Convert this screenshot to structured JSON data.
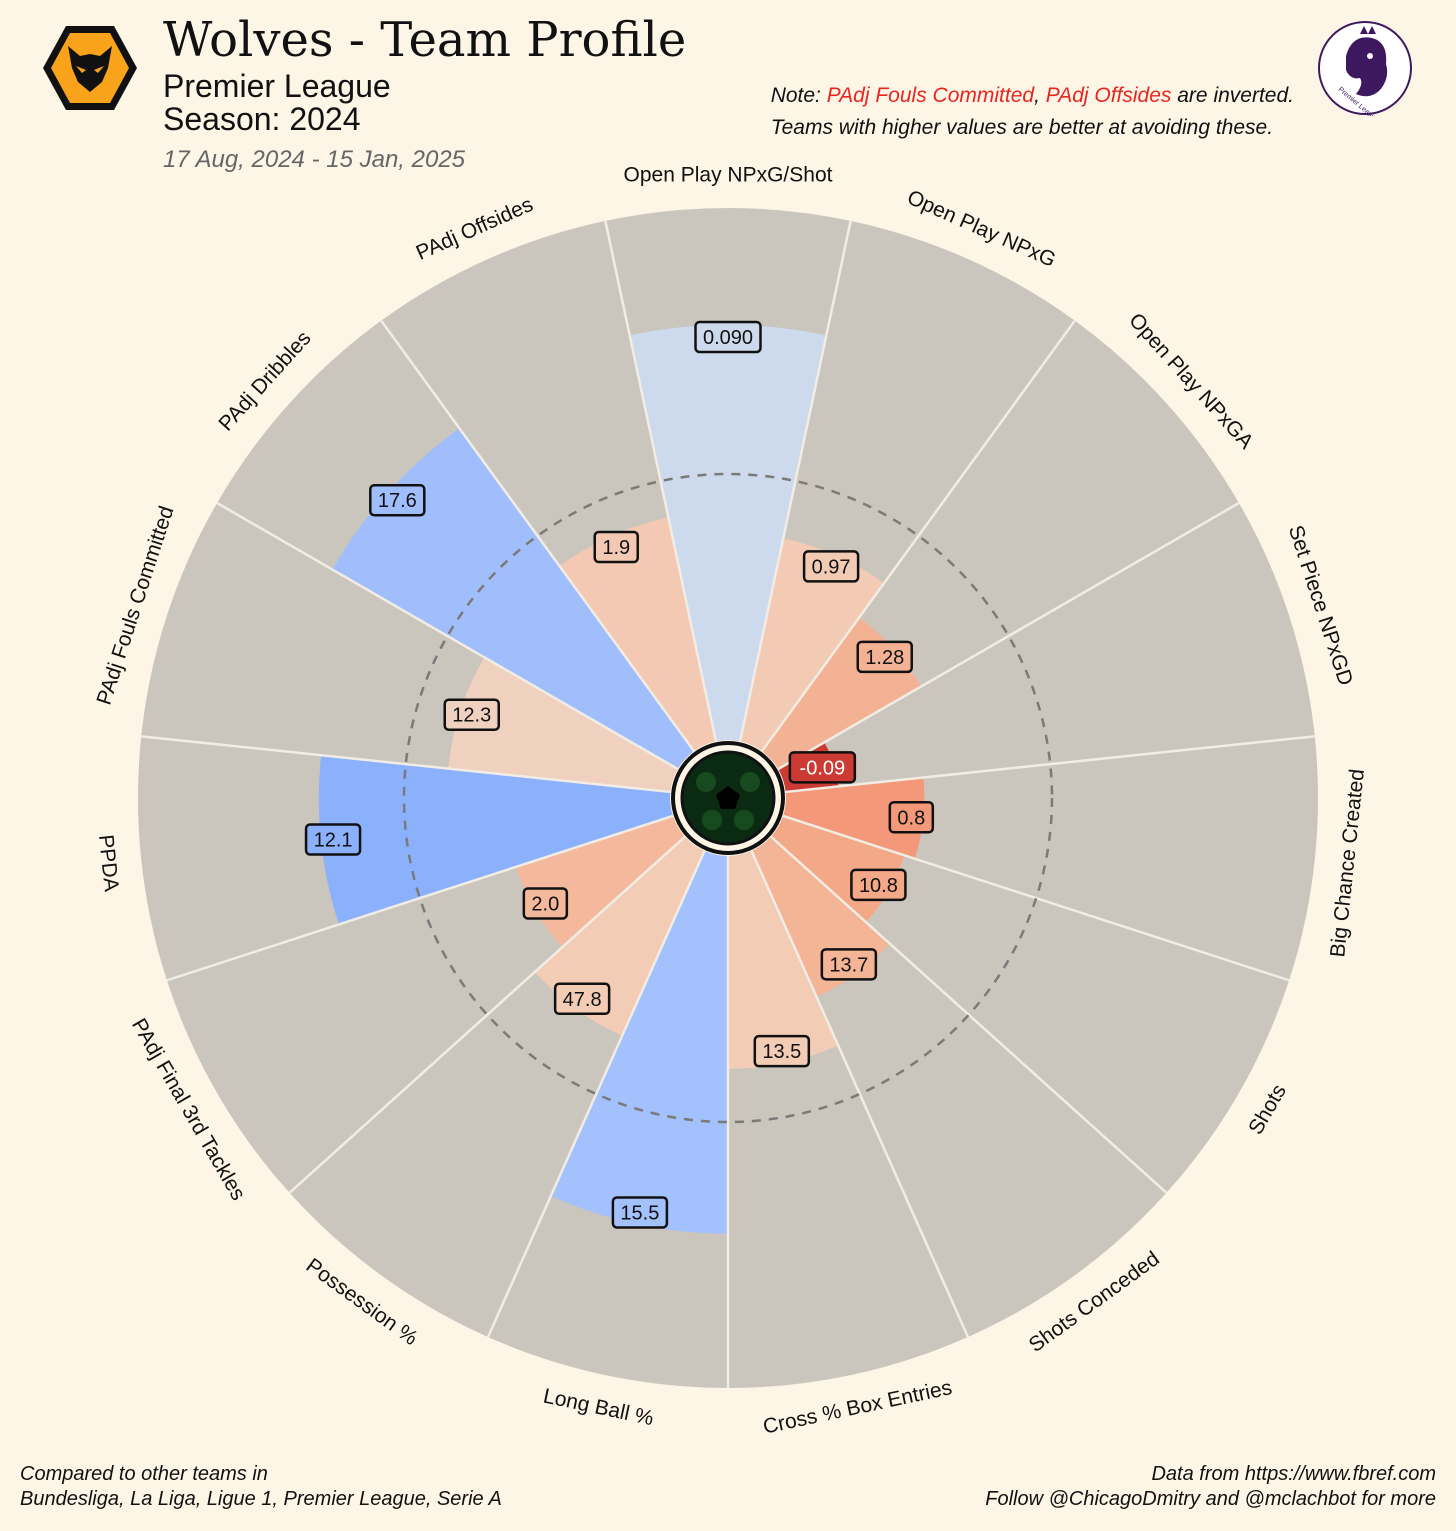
{
  "header": {
    "title": "Wolves - Team Profile",
    "league": "Premier League",
    "season": "Season: 2024",
    "date_range": "17 Aug, 2024 - 15 Jan, 2025"
  },
  "note": {
    "prefix": "Note: ",
    "inverted_1": "PAdj Fouls Committed",
    "sep": ", ",
    "inverted_2": "PAdj Offsides",
    "suffix": " are inverted.",
    "line2": "Teams with higher values are better at avoiding these."
  },
  "footer": {
    "left_line1": "Compared to other teams in",
    "left_line2": "Bundesliga, La Liga, Ligue 1, Premier League, Serie A",
    "right_line1": "Data from https://www.fbref.com",
    "right_line2": "Follow @ChicagoDmitry and @mclachbot for more"
  },
  "league_logo_text": "Premier League",
  "colors": {
    "background": "#fdf5e6",
    "slice_bg": "#cbc6bd",
    "grid": "#7a7a7a",
    "separator": "#f1ede4"
  },
  "chart_data": {
    "type": "radar-pizza",
    "scale": "percentile",
    "range": [
      0,
      100
    ],
    "reference_ring": 50,
    "categories": [
      {
        "label": "Open Play NPxG/Shot",
        "value_label": "0.090",
        "percentile": 78,
        "color": "#cdd9ec"
      },
      {
        "label": "Open Play NPxG",
        "value_label": "0.97",
        "percentile": 39,
        "color": "#f3cbb5"
      },
      {
        "label": "Open Play NPxGA",
        "value_label": "1.28",
        "percentile": 31,
        "color": "#f4b294"
      },
      {
        "label": "Set Piece NPxGD",
        "value_label": "-0.09",
        "percentile": 10,
        "color": "#cb3b34"
      },
      {
        "label": "Big Chance Created",
        "value_label": "0.8",
        "percentile": 26,
        "color": "#f39878"
      },
      {
        "label": "Shots",
        "value_label": "10.8",
        "percentile": 24,
        "color": "#f3a888"
      },
      {
        "label": "Shots Conceded",
        "value_label": "13.7",
        "percentile": 30,
        "color": "#f4b496"
      },
      {
        "label": "Cross % Box Entries",
        "value_label": "13.5",
        "percentile": 40,
        "color": "#f3ccb5"
      },
      {
        "label": "Long Ball %",
        "value_label": "15.5",
        "percentile": 71,
        "color": "#a3c1fc"
      },
      {
        "label": "Possession %",
        "value_label": "47.8",
        "percentile": 38,
        "color": "#f3ccb5"
      },
      {
        "label": "PAdj Final 3rd Tackles",
        "value_label": "2.0",
        "percentile": 31,
        "color": "#f4b99c"
      },
      {
        "label": "PPDA",
        "value_label": "12.1",
        "percentile": 66,
        "color": "#8bb0fc"
      },
      {
        "label": "PAdj Fouls Committed",
        "value_label": "12.3",
        "percentile": 42,
        "color": "#f0d1c0"
      },
      {
        "label": "PAdj Dribbles",
        "value_label": "17.6",
        "percentile": 75,
        "color": "#a0befc"
      },
      {
        "label": "PAdj Offsides",
        "value_label": "1.9",
        "percentile": 43,
        "color": "#f3c9b3"
      }
    ]
  }
}
